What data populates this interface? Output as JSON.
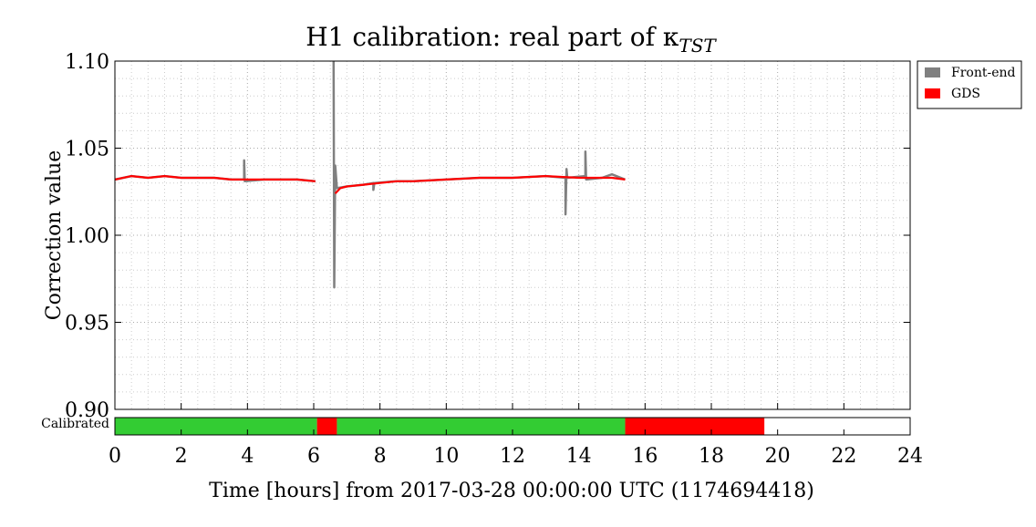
{
  "chart_data": {
    "type": "line",
    "title": "H1 calibration: real part of κ",
    "title_subscript": "TST",
    "xlabel": "Time [hours] from 2017-03-28 00:00:00 UTC (1174694418)",
    "ylabel": "Correction value",
    "xlim": [
      0,
      24
    ],
    "ylim": [
      0.9,
      1.1
    ],
    "grid": true,
    "legend_position": "top-right outside",
    "x_ticks": [
      "0",
      "2",
      "4",
      "6",
      "8",
      "10",
      "12",
      "14",
      "16",
      "18",
      "20",
      "22",
      "24"
    ],
    "y_ticks": [
      "1.10",
      "1.05",
      "1.00",
      "0.95",
      "0.90"
    ],
    "series": [
      {
        "name": "Front-end",
        "color": "#808080",
        "segments": [
          [
            [
              0.0,
              1.032
            ],
            [
              0.5,
              1.034
            ],
            [
              1.0,
              1.033
            ],
            [
              1.5,
              1.034
            ],
            [
              2.0,
              1.033
            ],
            [
              2.5,
              1.033
            ],
            [
              3.0,
              1.033
            ],
            [
              3.5,
              1.032
            ],
            [
              3.9,
              1.032
            ],
            [
              3.9,
              1.043
            ],
            [
              3.92,
              1.031
            ],
            [
              4.5,
              1.032
            ],
            [
              5.0,
              1.032
            ],
            [
              5.5,
              1.032
            ],
            [
              6.05,
              1.031
            ]
          ],
          [
            [
              6.6,
              1.1
            ],
            [
              6.62,
              0.97
            ],
            [
              6.65,
              1.04
            ],
            [
              6.7,
              1.027
            ],
            [
              7.0,
              1.028
            ],
            [
              7.5,
              1.029
            ],
            [
              7.8,
              1.03
            ],
            [
              7.8,
              1.026
            ],
            [
              7.83,
              1.03
            ],
            [
              8.5,
              1.031
            ],
            [
              9.0,
              1.031
            ],
            [
              10.0,
              1.032
            ],
            [
              11.0,
              1.033
            ],
            [
              12.0,
              1.033
            ],
            [
              13.0,
              1.034
            ],
            [
              13.6,
              1.033
            ],
            [
              13.6,
              1.012
            ],
            [
              13.63,
              1.038
            ],
            [
              13.65,
              1.033
            ],
            [
              14.2,
              1.034
            ],
            [
              14.2,
              1.048
            ],
            [
              14.22,
              1.032
            ],
            [
              14.7,
              1.033
            ],
            [
              15.0,
              1.035
            ],
            [
              15.4,
              1.032
            ]
          ]
        ]
      },
      {
        "name": "GDS",
        "color": "#ff0000",
        "segments": [
          [
            [
              0.0,
              1.032
            ],
            [
              0.5,
              1.034
            ],
            [
              1.0,
              1.033
            ],
            [
              1.5,
              1.034
            ],
            [
              2.0,
              1.033
            ],
            [
              2.5,
              1.033
            ],
            [
              3.0,
              1.033
            ],
            [
              3.5,
              1.032
            ],
            [
              4.0,
              1.032
            ],
            [
              4.5,
              1.032
            ],
            [
              5.0,
              1.032
            ],
            [
              5.5,
              1.032
            ],
            [
              6.05,
              1.031
            ]
          ],
          [
            [
              6.65,
              1.024
            ],
            [
              6.8,
              1.027
            ],
            [
              7.0,
              1.028
            ],
            [
              7.5,
              1.029
            ],
            [
              8.0,
              1.03
            ],
            [
              8.5,
              1.031
            ],
            [
              9.0,
              1.031
            ],
            [
              10.0,
              1.032
            ],
            [
              11.0,
              1.033
            ],
            [
              12.0,
              1.033
            ],
            [
              13.0,
              1.034
            ],
            [
              14.0,
              1.033
            ],
            [
              14.5,
              1.033
            ],
            [
              15.0,
              1.033
            ],
            [
              15.4,
              1.032
            ]
          ]
        ]
      }
    ],
    "calibrated_bar": {
      "label": "Calibrated",
      "segments": [
        {
          "start": 0.0,
          "end": 6.1,
          "status": "calibrated"
        },
        {
          "start": 6.1,
          "end": 6.7,
          "status": "uncalibrated"
        },
        {
          "start": 6.7,
          "end": 15.4,
          "status": "calibrated"
        },
        {
          "start": 15.4,
          "end": 19.6,
          "status": "uncalibrated"
        }
      ],
      "colors": {
        "calibrated": "#33cc33",
        "uncalibrated": "#ff0000",
        "none": "#ffffff"
      }
    }
  }
}
